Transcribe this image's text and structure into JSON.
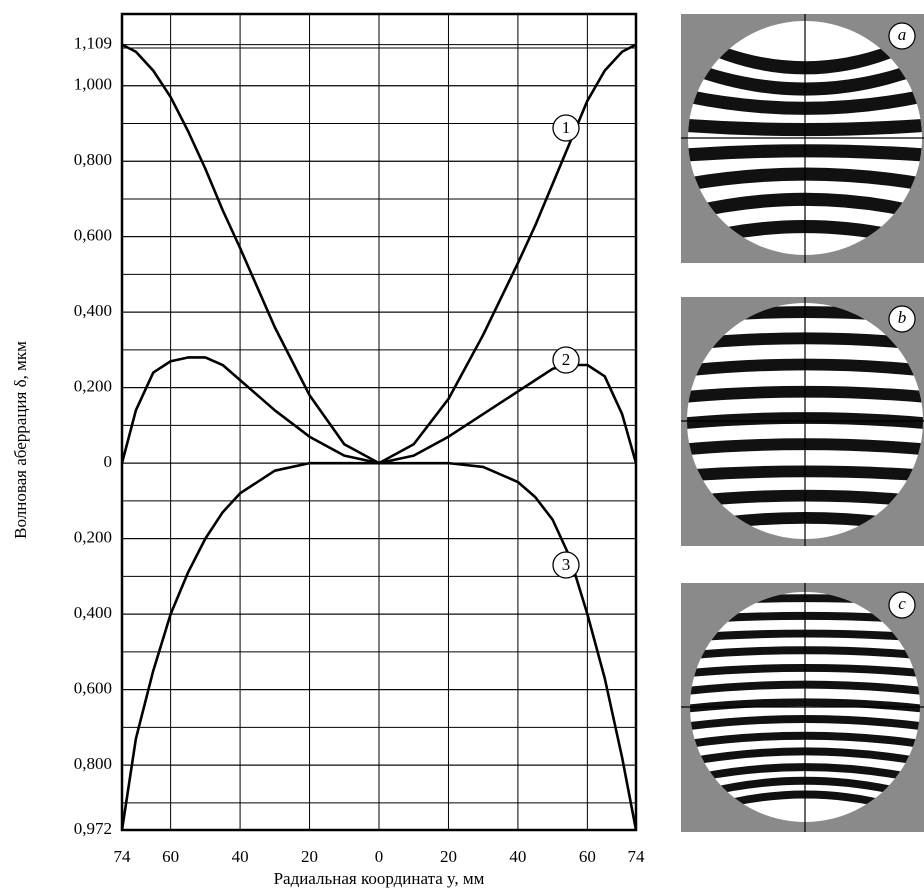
{
  "chart_data": {
    "type": "line",
    "xlabel": "Радиальная координата y, мм",
    "ylabel": "Волновая аберрация δ, мкм",
    "x": [
      -74,
      -70,
      -65,
      -60,
      -55,
      -50,
      -45,
      -40,
      -30,
      -20,
      -10,
      0,
      10,
      20,
      30,
      40,
      45,
      50,
      55,
      60,
      65,
      70,
      74
    ],
    "series": [
      {
        "name": "1",
        "color": "#000000",
        "values": [
          1.109,
          1.09,
          1.04,
          0.97,
          0.88,
          0.78,
          0.67,
          0.57,
          0.36,
          0.18,
          0.05,
          0,
          0.05,
          0.17,
          0.34,
          0.53,
          0.63,
          0.74,
          0.85,
          0.96,
          1.04,
          1.09,
          1.109
        ]
      },
      {
        "name": "2",
        "color": "#000000",
        "values": [
          0,
          0.14,
          0.24,
          0.27,
          0.28,
          0.28,
          0.26,
          0.22,
          0.14,
          0.07,
          0.02,
          0,
          0.02,
          0.07,
          0.13,
          0.19,
          0.22,
          0.25,
          0.26,
          0.26,
          0.23,
          0.13,
          0
        ]
      },
      {
        "name": "3",
        "color": "#000000",
        "values": [
          -0.972,
          -0.73,
          -0.55,
          -0.4,
          -0.29,
          -0.2,
          -0.13,
          -0.08,
          -0.02,
          0,
          0,
          0,
          0,
          0,
          -0.01,
          -0.05,
          -0.09,
          -0.15,
          -0.25,
          -0.4,
          -0.57,
          -0.78,
          -0.972
        ]
      }
    ],
    "xlim": [
      -74,
      74
    ],
    "xticks": [
      {
        "value": -74,
        "label": "74"
      },
      {
        "value": -60,
        "label": "60"
      },
      {
        "value": -40,
        "label": "40"
      },
      {
        "value": -20,
        "label": "20"
      },
      0,
      20,
      40,
      60,
      74
    ],
    "ylim": [
      -0.972,
      1.19
    ],
    "yticks": [
      {
        "value": 1.109,
        "label": "1,109"
      },
      {
        "value": 1,
        "label": "1,000"
      },
      {
        "value": 0.8,
        "label": "0,800"
      },
      {
        "value": 0.6,
        "label": "0,600"
      },
      {
        "value": 0.4,
        "label": "0,400"
      },
      {
        "value": 0.2,
        "label": "0,200"
      },
      0,
      {
        "value": -0.2,
        "label": "0,200"
      },
      {
        "value": -0.4,
        "label": "0,400"
      },
      {
        "value": -0.6,
        "label": "0,600"
      },
      {
        "value": -0.8,
        "label": "0,800"
      },
      {
        "value": -0.972,
        "label": "0,972"
      }
    ],
    "ygrid": [
      1.1,
      1.0,
      0.9,
      0.8,
      0.7,
      0.6,
      0.5,
      0.4,
      0.3,
      0.2,
      0.1,
      0,
      -0.1,
      -0.2,
      -0.3,
      -0.4,
      -0.5,
      -0.6,
      -0.7,
      -0.8,
      -0.9
    ],
    "grid": true
  },
  "panels": [
    {
      "label": "a"
    },
    {
      "label": "b"
    },
    {
      "label": "c"
    }
  ]
}
